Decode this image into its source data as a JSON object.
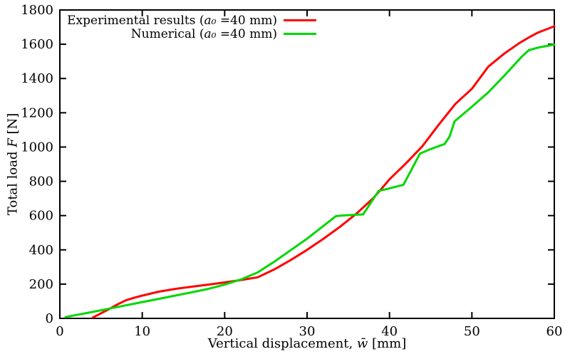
{
  "colors": {
    "axis": "#000000",
    "background": "#ffffff",
    "experimental": "#ff0000",
    "numerical": "#00d800"
  },
  "chart_data": {
    "type": "line",
    "title": "",
    "xlabel_prefix": "Vertical displacement, ",
    "xlabel_symbol": "w̄",
    "xlabel_suffix": " [mm]",
    "ylabel_prefix": "Total load ",
    "ylabel_symbol": "F",
    "ylabel_suffix": " [N]",
    "xlim": [
      0,
      60
    ],
    "ylim": [
      0,
      1800
    ],
    "x_ticks": [
      0,
      10,
      20,
      30,
      40,
      50,
      60
    ],
    "y_ticks": [
      0,
      200,
      400,
      600,
      800,
      1000,
      1200,
      1400,
      1600,
      1800
    ],
    "grid": false,
    "legend_position": "top-left-inside",
    "series": [
      {
        "id": "experimental",
        "label_prefix": "Experimental results (",
        "label_var": "a₀",
        "label_suffix": " =40 mm)",
        "color": "#ff0000",
        "points": [
          [
            4,
            5
          ],
          [
            5,
            30
          ],
          [
            6,
            55
          ],
          [
            7,
            82
          ],
          [
            8,
            105
          ],
          [
            9,
            120
          ],
          [
            10,
            133
          ],
          [
            12,
            156
          ],
          [
            14,
            172
          ],
          [
            16,
            185
          ],
          [
            18,
            197
          ],
          [
            20,
            210
          ],
          [
            22,
            224
          ],
          [
            24,
            240
          ],
          [
            26,
            285
          ],
          [
            28,
            340
          ],
          [
            30,
            400
          ],
          [
            32,
            465
          ],
          [
            34,
            535
          ],
          [
            36,
            612
          ],
          [
            38,
            700
          ],
          [
            39,
            755
          ],
          [
            40,
            812
          ],
          [
            42,
            905
          ],
          [
            44,
            1005
          ],
          [
            46,
            1132
          ],
          [
            48,
            1252
          ],
          [
            50,
            1340
          ],
          [
            52,
            1470
          ],
          [
            54,
            1548
          ],
          [
            55.8,
            1608
          ],
          [
            57,
            1642
          ],
          [
            58,
            1668
          ],
          [
            60,
            1705
          ]
        ]
      },
      {
        "id": "numerical",
        "label_prefix": "Numerical (",
        "label_var": "a₀",
        "label_suffix": " =40 mm)",
        "color": "#00d800",
        "points": [
          [
            0.7,
            8
          ],
          [
            2,
            20
          ],
          [
            4,
            38
          ],
          [
            6,
            57
          ],
          [
            8,
            76
          ],
          [
            10,
            95
          ],
          [
            12,
            114
          ],
          [
            14,
            133
          ],
          [
            16,
            152
          ],
          [
            18,
            172
          ],
          [
            20,
            197
          ],
          [
            22,
            228
          ],
          [
            24,
            268
          ],
          [
            26,
            330
          ],
          [
            28,
            398
          ],
          [
            30,
            465
          ],
          [
            32,
            540
          ],
          [
            33.5,
            597
          ],
          [
            34.5,
            601
          ],
          [
            36.8,
            607
          ],
          [
            38.7,
            745
          ],
          [
            39.5,
            753
          ],
          [
            41.7,
            780
          ],
          [
            43.7,
            962
          ],
          [
            45,
            988
          ],
          [
            46.7,
            1018
          ],
          [
            47.3,
            1062
          ],
          [
            47.9,
            1150
          ],
          [
            50,
            1235
          ],
          [
            52,
            1320
          ],
          [
            54,
            1420
          ],
          [
            56,
            1525
          ],
          [
            56.9,
            1565
          ],
          [
            58,
            1580
          ],
          [
            60,
            1598
          ]
        ]
      }
    ]
  }
}
